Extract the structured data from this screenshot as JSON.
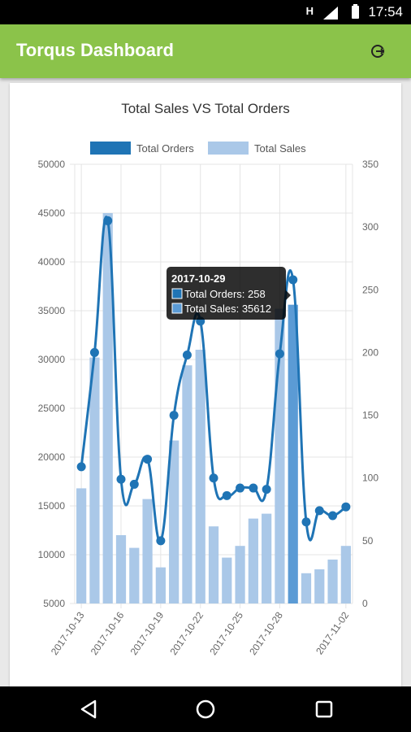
{
  "status_bar": {
    "time": "17:54",
    "signal_label": "H"
  },
  "app_bar": {
    "title": "Torqus Dashboard",
    "action_icon": "logout-icon"
  },
  "colors": {
    "app_bar": "#8bc34a",
    "orders": "#1f74b5",
    "sales": "#aac8e8",
    "sales_highlight": "#5b9bd5"
  },
  "tooltip": {
    "title": "2017-10-29",
    "orders_line": "Total Orders: 258",
    "sales_line": "Total Sales: 35612"
  },
  "chart_data": {
    "type": "bar",
    "title": "Total Sales VS Total Orders",
    "legend_position": "top",
    "grid": true,
    "categories": [
      "2017-10-13",
      "2017-10-14",
      "2017-10-15",
      "2017-10-16",
      "2017-10-17",
      "2017-10-18",
      "2017-10-19",
      "2017-10-20",
      "2017-10-21",
      "2017-10-22",
      "2017-10-23",
      "2017-10-24",
      "2017-10-25",
      "2017-10-26",
      "2017-10-27",
      "2017-10-28",
      "2017-10-29",
      "2017-10-30",
      "2017-10-31",
      "2017-11-01",
      "2017-11-02"
    ],
    "x_tick_labels": [
      "2017-10-13",
      "2017-10-16",
      "2017-10-19",
      "2017-10-22",
      "2017-10-25",
      "2017-10-28",
      "2017-11-02"
    ],
    "y_left": {
      "min": 5000,
      "max": 50000,
      "ticks": [
        5000,
        10000,
        15000,
        20000,
        25000,
        30000,
        35000,
        40000,
        45000,
        50000
      ]
    },
    "y_right": {
      "min": 0,
      "max": 350,
      "ticks": [
        0,
        50,
        100,
        150,
        200,
        250,
        300,
        350
      ]
    },
    "highlight_index": 16,
    "series": [
      {
        "name": "Total Orders",
        "type": "line",
        "axis": "right",
        "values": [
          109,
          200,
          305,
          99,
          95,
          115,
          50,
          150,
          198,
          225,
          100,
          86,
          92,
          92,
          91,
          199,
          258,
          65,
          74,
          70,
          77
        ]
      },
      {
        "name": "Total Sales",
        "type": "bar",
        "axis": "left",
        "values": [
          16800,
          30200,
          45000,
          12000,
          10700,
          15700,
          8700,
          21700,
          29400,
          31000,
          12900,
          9700,
          10900,
          13700,
          14200,
          35200,
          35612,
          8100,
          8500,
          9500,
          10900
        ]
      }
    ]
  }
}
